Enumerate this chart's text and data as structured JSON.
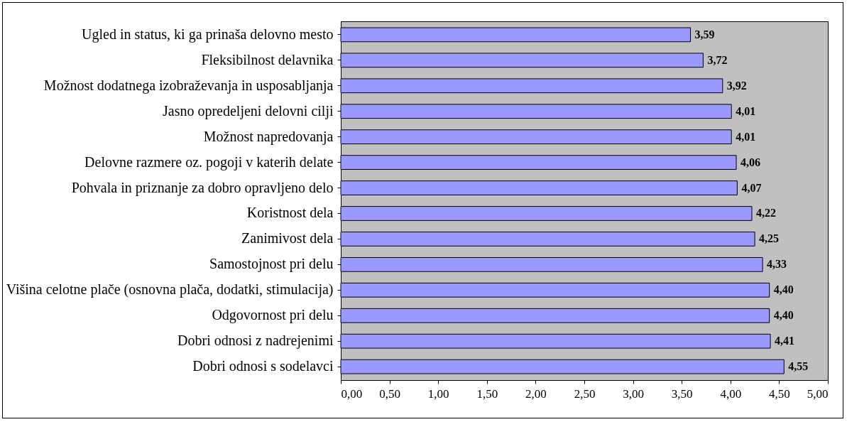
{
  "chart_data": {
    "type": "bar",
    "orientation": "horizontal",
    "categories": [
      "Ugled in status, ki ga prinaša delovno mesto",
      "Fleksibilnost delavnika",
      "Možnost dodatnega izobraževanja in usposabljanja",
      "Jasno opredeljeni delovni cilji",
      "Možnost napredovanja",
      "Delovne razmere oz. pogoji v katerih delate",
      "Pohvala in priznanje za dobro opravljeno delo",
      "Koristnost dela",
      "Zanimivost dela",
      "Samostojnost pri delu",
      "Višina celotne plače (osnovna plača, dodatki, stimulacija)",
      "Odgovornost pri delu",
      "Dobri odnosi z nadrejenimi",
      "Dobri odnosi s sodelavci"
    ],
    "values": [
      3.59,
      3.72,
      3.92,
      4.01,
      4.01,
      4.06,
      4.07,
      4.22,
      4.25,
      4.33,
      4.4,
      4.4,
      4.41,
      4.55
    ],
    "value_labels": [
      "3,59",
      "3,72",
      "3,92",
      "4,01",
      "4,01",
      "4,06",
      "4,07",
      "4,22",
      "4,25",
      "4,33",
      "4,40",
      "4,40",
      "4,41",
      "4,55"
    ],
    "color": "#9999ff",
    "xlim": [
      0,
      5
    ],
    "xticks": [
      {
        "value": 0,
        "label": "0,00"
      },
      {
        "value": 0.5,
        "label": "0,50"
      },
      {
        "value": 1,
        "label": "1,00"
      },
      {
        "value": 1.5,
        "label": "1,50"
      },
      {
        "value": 2,
        "label": "2,00"
      },
      {
        "value": 2.5,
        "label": "2,50"
      },
      {
        "value": 3,
        "label": "3,00"
      },
      {
        "value": 3.5,
        "label": "3,50"
      },
      {
        "value": 4,
        "label": "4,00"
      },
      {
        "value": 4.5,
        "label": "4,50"
      },
      {
        "value": 5,
        "label": "5,00"
      }
    ],
    "grid": false
  }
}
